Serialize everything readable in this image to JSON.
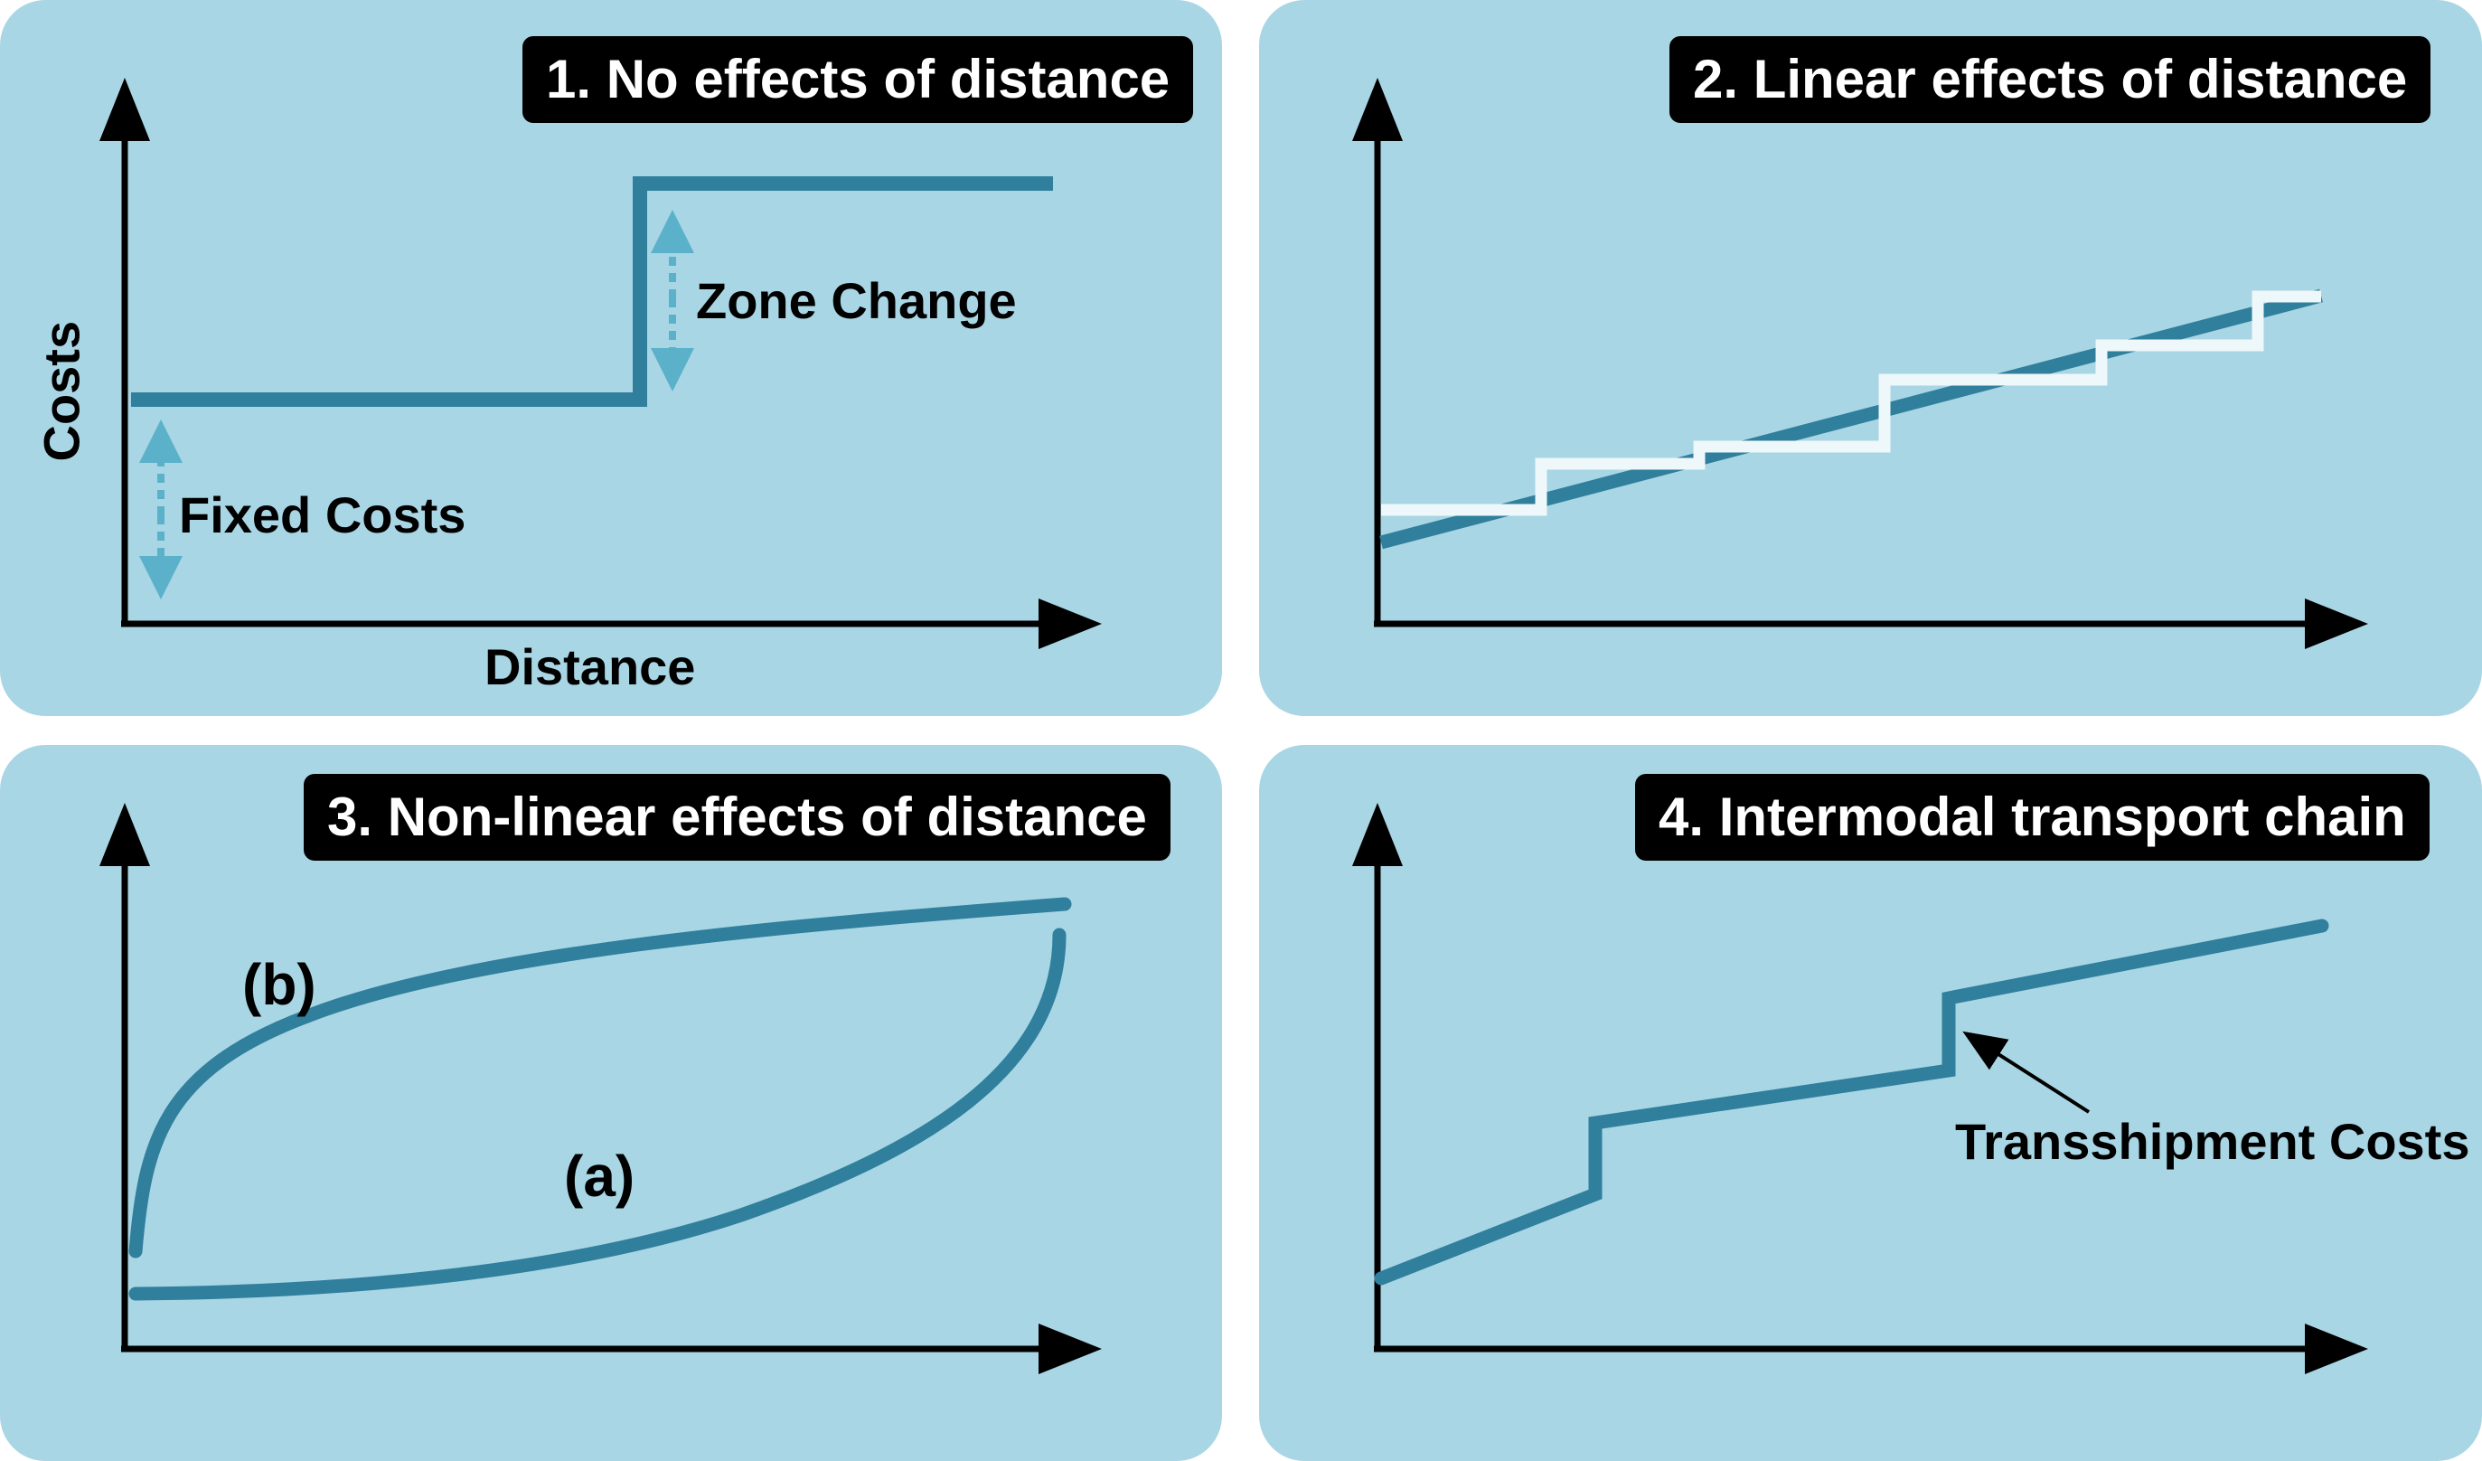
{
  "panels": [
    {
      "title": "1. No effects of distance",
      "y_label": "Costs",
      "x_label": "Distance",
      "annotations": {
        "zone_change": "Zone Change",
        "fixed_costs": "Fixed Costs"
      }
    },
    {
      "title": "2. Linear effects of distance"
    },
    {
      "title": "3. Non-linear effects of distance",
      "annotations": {
        "curve_b": "(b)",
        "curve_a": "(a)"
      }
    },
    {
      "title": "4. Intermodal transport chain",
      "annotations": {
        "transshipment": "Transshipment Costs"
      }
    }
  ],
  "colors": {
    "panel_background": "#a9d6e4",
    "cost_line": "#2f7f9d",
    "step_line": "#eef7fa",
    "dotted_arrow": "#5bb1c9",
    "axis": "#000000"
  }
}
